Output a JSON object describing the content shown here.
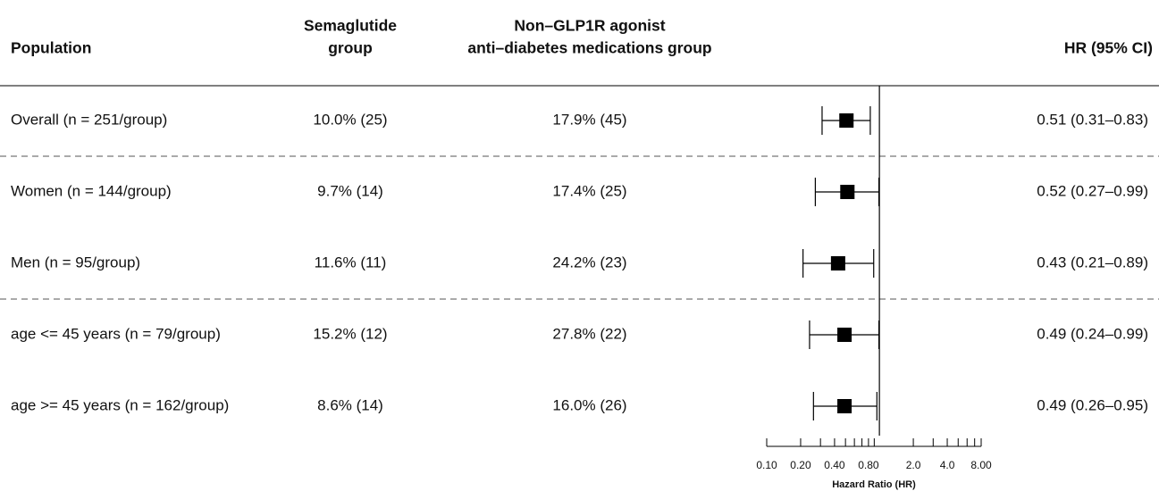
{
  "chart_data": {
    "type": "forest",
    "columns": {
      "population": "Population",
      "semaglutide": [
        "Semaglutide",
        "group"
      ],
      "comparator": [
        "Non–GLP1R agonist",
        "anti–diabetes medications group"
      ],
      "hr": "HR (95% CI)"
    },
    "groups": [
      [
        {
          "population": "Overall (n = 251/group)",
          "semaglutide": "10.0% (25)",
          "comparator": "17.9% (45)",
          "hr": 0.51,
          "lower": 0.31,
          "upper": 0.83,
          "hr_label": "0.51 (0.31–0.83)"
        }
      ],
      [
        {
          "population": "Women (n = 144/group)",
          "semaglutide": "9.7% (14)",
          "comparator": "17.4% (25)",
          "hr": 0.52,
          "lower": 0.27,
          "upper": 0.99,
          "hr_label": "0.52 (0.27–0.99)"
        },
        {
          "population": "Men (n = 95/group)",
          "semaglutide": "11.6% (11)",
          "comparator": "24.2% (23)",
          "hr": 0.43,
          "lower": 0.21,
          "upper": 0.89,
          "hr_label": "0.43 (0.21–0.89)"
        }
      ],
      [
        {
          "population": "age <= 45 years (n = 79/group)",
          "semaglutide": "15.2% (12)",
          "comparator": "27.8% (22)",
          "hr": 0.49,
          "lower": 0.24,
          "upper": 0.99,
          "hr_label": "0.49 (0.24–0.99)"
        },
        {
          "population": "age >= 45 years (n = 162/group)",
          "semaglutide": "8.6% (14)",
          "comparator": "16.0% (26)",
          "hr": 0.49,
          "lower": 0.26,
          "upper": 0.95,
          "hr_label": "0.49 (0.26–0.95)"
        }
      ]
    ],
    "x_label": "Hazard Ratio (HR)",
    "log_x": true,
    "reference_line": 1,
    "xlim": [
      0.1,
      8
    ],
    "xticks": [
      {
        "value": 0.1,
        "label": "0.10"
      },
      {
        "value": 0.2,
        "label": "0.20"
      },
      {
        "value": 0.4,
        "label": "0.40"
      },
      {
        "value": 0.8,
        "label": "0.80"
      },
      {
        "value": 2,
        "label": "2.0"
      },
      {
        "value": 4,
        "label": "4.0"
      },
      {
        "value": 8,
        "label": "8.00"
      }
    ],
    "xminorticks": [
      0.3,
      0.5,
      0.6,
      0.7,
      0.9,
      3,
      5,
      6,
      7
    ],
    "color": "#000000"
  }
}
